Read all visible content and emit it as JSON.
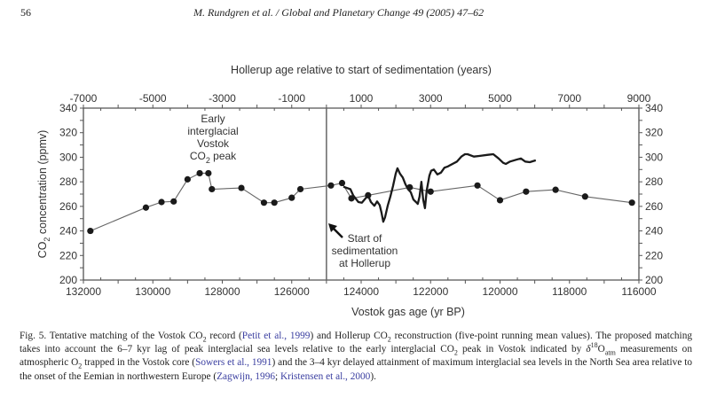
{
  "header": {
    "page_number": "56",
    "journal_citation": "M. Rundgren et al. / Global and Planetary Change 49 (2005) 47–62"
  },
  "chart_data": {
    "type": "line",
    "top_axis": {
      "label": "Hollerup age relative to start of sedimentation (years)",
      "range": [
        -7000,
        9000
      ],
      "tick_labels": [
        "-7000",
        "-5000",
        "-3000",
        "-1000",
        "1000",
        "3000",
        "5000",
        "7000",
        "9000"
      ],
      "tick_values": [
        -7000,
        -5000,
        -3000,
        -1000,
        1000,
        3000,
        5000,
        7000,
        9000
      ],
      "minor_step": 500
    },
    "bottom_axis": {
      "label": "Vostok gas age (yr BP)",
      "range": [
        132000,
        116000
      ],
      "tick_labels": [
        "132000",
        "130000",
        "128000",
        "126000",
        "124000",
        "122000",
        "120000",
        "118000",
        "116000"
      ],
      "tick_values": [
        132000,
        130000,
        128000,
        126000,
        124000,
        122000,
        120000,
        118000,
        116000
      ],
      "minor_step": 500
    },
    "y_axis": {
      "label_prefix": "CO",
      "label_sub": "2",
      "label_suffix": " concentration (ppmv)",
      "range": [
        200,
        340
      ],
      "tick_labels": [
        "200",
        "220",
        "240",
        "260",
        "280",
        "300",
        "320",
        "340"
      ],
      "tick_values": [
        200,
        220,
        240,
        260,
        280,
        300,
        320,
        340
      ],
      "minor_step": 10,
      "mirrored_right": true
    },
    "reference_line": {
      "hollerup_year": 0,
      "vostok_age": 125000
    },
    "series": [
      {
        "name": "Vostok CO2 record",
        "style": "thin line with filled circle markers",
        "axis": "bottom",
        "color": "#222222",
        "points": [
          [
            131800,
            240
          ],
          [
            130200,
            259
          ],
          [
            129750,
            263.5
          ],
          [
            129400,
            264
          ],
          [
            129000,
            282
          ],
          [
            128650,
            287
          ],
          [
            128400,
            287
          ],
          [
            128300,
            274
          ],
          [
            127450,
            275
          ],
          [
            126800,
            263
          ],
          [
            126500,
            263
          ],
          [
            126000,
            267
          ],
          [
            125750,
            274
          ],
          [
            124870,
            277
          ],
          [
            124550,
            279
          ],
          [
            124280,
            266.5
          ],
          [
            123800,
            269
          ],
          [
            122600,
            275.5
          ],
          [
            122000,
            272
          ],
          [
            120650,
            277
          ],
          [
            120000,
            265
          ],
          [
            119250,
            272
          ],
          [
            118400,
            273.5
          ],
          [
            117550,
            268
          ],
          [
            116200,
            263
          ]
        ]
      },
      {
        "name": "Hollerup CO2 reconstruction (five-point running mean)",
        "style": "thick line",
        "axis": "top",
        "color": "#1a1a1a",
        "points": [
          [
            490,
            276
          ],
          [
            690,
            274
          ],
          [
            770,
            269
          ],
          [
            920,
            263.5
          ],
          [
            1020,
            263
          ],
          [
            1125,
            266.5
          ],
          [
            1200,
            269
          ],
          [
            1280,
            263.5
          ],
          [
            1380,
            260.5
          ],
          [
            1460,
            264
          ],
          [
            1535,
            261
          ],
          [
            1585,
            255
          ],
          [
            1636,
            247.5
          ],
          [
            1687,
            251
          ],
          [
            1765,
            260.5
          ],
          [
            1840,
            268
          ],
          [
            1917,
            276.5
          ],
          [
            1994,
            286.5
          ],
          [
            2045,
            291
          ],
          [
            2120,
            286.5
          ],
          [
            2200,
            283.5
          ],
          [
            2275,
            278
          ],
          [
            2350,
            274
          ],
          [
            2430,
            271.5
          ],
          [
            2505,
            265.5
          ],
          [
            2580,
            263.5
          ],
          [
            2630,
            262
          ],
          [
            2683,
            268
          ],
          [
            2735,
            280
          ],
          [
            2786,
            265.5
          ],
          [
            2837,
            258.5
          ],
          [
            2888,
            273
          ],
          [
            2965,
            285
          ],
          [
            3016,
            289
          ],
          [
            3093,
            290
          ],
          [
            3195,
            286
          ],
          [
            3297,
            287.5
          ],
          [
            3400,
            291.5
          ],
          [
            3500,
            292.5
          ],
          [
            3630,
            294.5
          ],
          [
            3760,
            296.5
          ],
          [
            3885,
            300.5
          ],
          [
            3990,
            302.5
          ],
          [
            4065,
            302.5
          ],
          [
            4245,
            300.5
          ],
          [
            4400,
            301
          ],
          [
            4650,
            302
          ],
          [
            4805,
            302.5
          ],
          [
            4960,
            299
          ],
          [
            5090,
            295.5
          ],
          [
            5165,
            294.5
          ],
          [
            5290,
            296.5
          ],
          [
            5470,
            298
          ],
          [
            5600,
            299
          ],
          [
            5725,
            296.5
          ],
          [
            5855,
            296
          ],
          [
            6030,
            297.5
          ]
        ]
      }
    ],
    "annotations": [
      {
        "id": "early-peak",
        "lines": [
          "Early",
          "interglacial",
          "Vostok"
        ],
        "last_line_prefix": "CO",
        "last_line_sub": "2",
        "last_line_suffix": " peak"
      },
      {
        "id": "start-sedimentation",
        "lines": [
          "Start of",
          "sedimentation",
          "at Hollerup"
        ],
        "arrow": true
      }
    ],
    "grid": false,
    "legend": "none"
  },
  "caption": {
    "segments": [
      {
        "text": "Fig. 5. Tentative matching of the Vostok CO",
        "type": "text"
      },
      {
        "text": "2",
        "type": "sub"
      },
      {
        "text": " record (",
        "type": "text"
      },
      {
        "text": "Petit et al., 1999",
        "type": "ref"
      },
      {
        "text": ") and Hollerup CO",
        "type": "text"
      },
      {
        "text": "2",
        "type": "sub"
      },
      {
        "text": " reconstruction (five-point running mean values). The proposed matching takes into account the 6–7 kyr lag of peak interglacial sea levels relative to the early interglacial CO",
        "type": "text"
      },
      {
        "text": "2",
        "type": "sub"
      },
      {
        "text": " peak in Vostok indicated by ",
        "type": "text"
      },
      {
        "text": "δ",
        "type": "italic"
      },
      {
        "text": "18",
        "type": "sup"
      },
      {
        "text": "O",
        "type": "text"
      },
      {
        "text": "atm",
        "type": "sub"
      },
      {
        "text": " measurements on atmospheric O",
        "type": "text"
      },
      {
        "text": "2",
        "type": "sub"
      },
      {
        "text": " trapped in the Vostok core (",
        "type": "text"
      },
      {
        "text": "Sowers et al., 1991",
        "type": "ref"
      },
      {
        "text": ") and the 3–4 kyr delayed attainment of maximum interglacial sea levels in the North Sea area relative to the onset of the Eemian in northwestern Europe (",
        "type": "text"
      },
      {
        "text": "Zagwijn, 1996",
        "type": "ref"
      },
      {
        "text": "; ",
        "type": "text"
      },
      {
        "text": "Kristensen et al., 2000",
        "type": "ref"
      },
      {
        "text": ").",
        "type": "text"
      }
    ]
  }
}
